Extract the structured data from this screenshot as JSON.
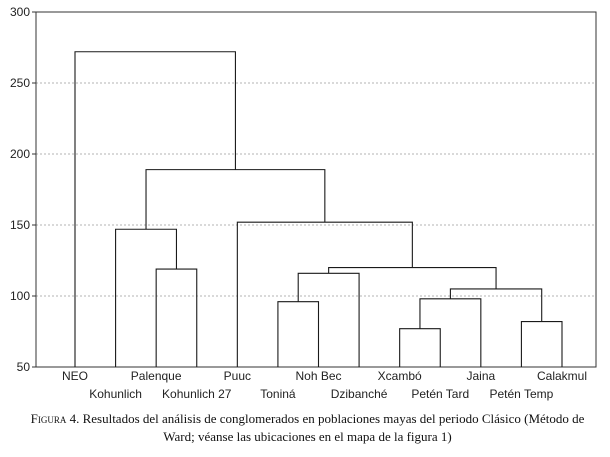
{
  "chart_data": {
    "type": "dendrogram",
    "title": "",
    "xlabel": "",
    "ylabel": "",
    "ylim": [
      50,
      300
    ],
    "yticks": [
      50,
      100,
      150,
      200,
      250,
      300
    ],
    "grid": "horizontal-dashed",
    "leaves": [
      "NEO",
      "Kohunlich",
      "Palenque",
      "Kohunlich 27",
      "Puuc",
      "Toniná",
      "Noh Bec",
      "Dzibanché",
      "Xcambó",
      "Petén Tard",
      "Jaina",
      "Petén Temp",
      "Calakmul"
    ],
    "merges": [
      {
        "a": 8,
        "b": 9,
        "height": 77
      },
      {
        "a": 11,
        "b": 12,
        "height": 82
      },
      {
        "a": 5,
        "b": 6,
        "height": 96
      },
      {
        "a": 10,
        "b": "m0",
        "height": 98
      },
      {
        "a": "m3",
        "b": "m1",
        "height": 105
      },
      {
        "a": "m2",
        "b": 7,
        "height": 116
      },
      {
        "a": 2,
        "b": 3,
        "height": 119
      },
      {
        "a": "m5",
        "b": "m4",
        "height": 120
      },
      {
        "a": 1,
        "b": "m6",
        "height": 147
      },
      {
        "a": 4,
        "b": "m7",
        "height": 152
      },
      {
        "a": "m8",
        "b": "m9",
        "height": 189
      },
      {
        "a": 0,
        "b": "m10",
        "height": 272
      }
    ]
  },
  "caption": {
    "label": "Figura 4.",
    "text": "Resultados del análisis de conglomerados en poblaciones mayas del periodo Clásico (Método de Ward; véanse las ubicaciones en el mapa de la figura 1)"
  },
  "colors": {
    "line": "#1a1a1a",
    "grid": "#9a9a9a",
    "frame": "#333333"
  }
}
